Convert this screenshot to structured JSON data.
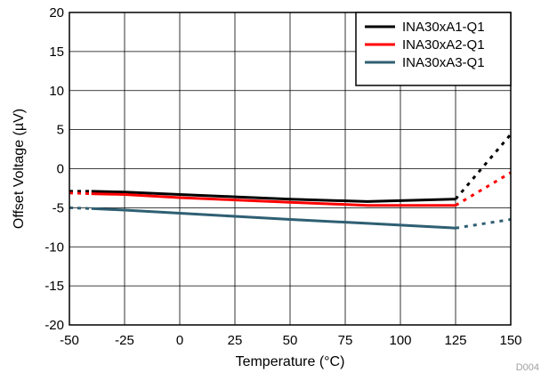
{
  "chart_data": {
    "type": "line",
    "title": "",
    "xlabel": "Temperature (°C)",
    "ylabel": "Offset Voltage (µV)",
    "xlim": [
      -50,
      150
    ],
    "ylim": [
      -20,
      20
    ],
    "xticks": [
      -50,
      -25,
      0,
      25,
      50,
      75,
      100,
      125,
      150
    ],
    "yticks": [
      -20,
      -15,
      -10,
      -5,
      0,
      5,
      10,
      15,
      20
    ],
    "grid": true,
    "legend_position": "top-right",
    "series": [
      {
        "name": "INA30xA1-Q1",
        "color": "#000000",
        "solid": [
          [
            -40,
            -2.9
          ],
          [
            -25,
            -3.0
          ],
          [
            0,
            -3.3
          ],
          [
            25,
            -3.6
          ],
          [
            50,
            -3.9
          ],
          [
            85,
            -4.2
          ],
          [
            125,
            -3.9
          ]
        ],
        "dashed_low": [
          [
            -50,
            -2.9
          ],
          [
            -40,
            -2.9
          ]
        ],
        "dashed_high": [
          [
            125,
            -3.9
          ],
          [
            150,
            4.4
          ]
        ]
      },
      {
        "name": "INA30xA2-Q1",
        "color": "#ff0000",
        "solid": [
          [
            -40,
            -3.2
          ],
          [
            -25,
            -3.3
          ],
          [
            0,
            -3.7
          ],
          [
            25,
            -4.0
          ],
          [
            50,
            -4.3
          ],
          [
            85,
            -4.7
          ],
          [
            125,
            -4.7
          ]
        ],
        "dashed_low": [
          [
            -50,
            -3.1
          ],
          [
            -40,
            -3.2
          ]
        ],
        "dashed_high": [
          [
            125,
            -4.7
          ],
          [
            150,
            -0.5
          ]
        ]
      },
      {
        "name": "INA30xA3-Q1",
        "color": "#2f5f73",
        "solid": [
          [
            -40,
            -5.1
          ],
          [
            -25,
            -5.3
          ],
          [
            0,
            -5.7
          ],
          [
            25,
            -6.1
          ],
          [
            50,
            -6.5
          ],
          [
            85,
            -7.0
          ],
          [
            125,
            -7.6
          ]
        ],
        "dashed_low": [
          [
            -50,
            -5.0
          ],
          [
            -40,
            -5.1
          ]
        ],
        "dashed_high": [
          [
            125,
            -7.6
          ],
          [
            150,
            -6.5
          ]
        ]
      }
    ],
    "figure_code": "D004"
  }
}
